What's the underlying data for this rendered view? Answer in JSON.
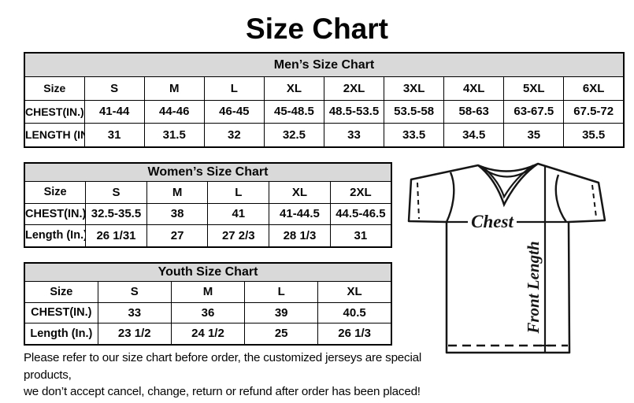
{
  "page": {
    "title": "Size Chart"
  },
  "tables": [
    {
      "id": "mens",
      "title": "Men’s Size Chart",
      "rows": [
        [
          "Size",
          "S",
          "M",
          "L",
          "XL",
          "2XL",
          "3XL",
          "4XL",
          "5XL",
          "6XL"
        ],
        [
          "CHEST(IN.)",
          "41-44",
          "44-46",
          "46-45",
          "45-48.5",
          "48.5-53.5",
          "53.5-58",
          "58-63",
          "63-67.5",
          "67.5-72"
        ],
        [
          "LENGTH (IN.)",
          "31",
          "31.5",
          "32",
          "32.5",
          "33",
          "33.5",
          "34.5",
          "35",
          "35.5"
        ]
      ]
    },
    {
      "id": "womens",
      "title": "Women’s Size Chart",
      "rows": [
        [
          "Size",
          "S",
          "M",
          "L",
          "XL",
          "2XL"
        ],
        [
          "CHEST(IN.)",
          "32.5-35.5",
          "38",
          "41",
          "41-44.5",
          "44.5-46.5"
        ],
        [
          "Length (In.)",
          "26 1/31",
          "27",
          "27 2/3",
          "28 1/3",
          "31"
        ]
      ]
    },
    {
      "id": "youth",
      "title": "Youth Size Chart",
      "rows": [
        [
          "Size",
          "S",
          "M",
          "L",
          "XL"
        ],
        [
          "CHEST(IN.)",
          "33",
          "36",
          "39",
          "40.5"
        ],
        [
          "Length (In.)",
          "23 1/2",
          "24 1/2",
          "25",
          "26 1/3"
        ]
      ]
    }
  ],
  "diagram": {
    "chest_label": "Chest",
    "front_length_label": "Front Length"
  },
  "disclaimer": {
    "line1": "Please refer to our size chart before order, the customized jerseys are special products,",
    "line2": "we don’t accept cancel, change, return or refund after order has been placed!"
  },
  "colors": {
    "header_bg": "#d9d9d9",
    "border": "#000000",
    "text": "#000000",
    "background": "#ffffff"
  }
}
